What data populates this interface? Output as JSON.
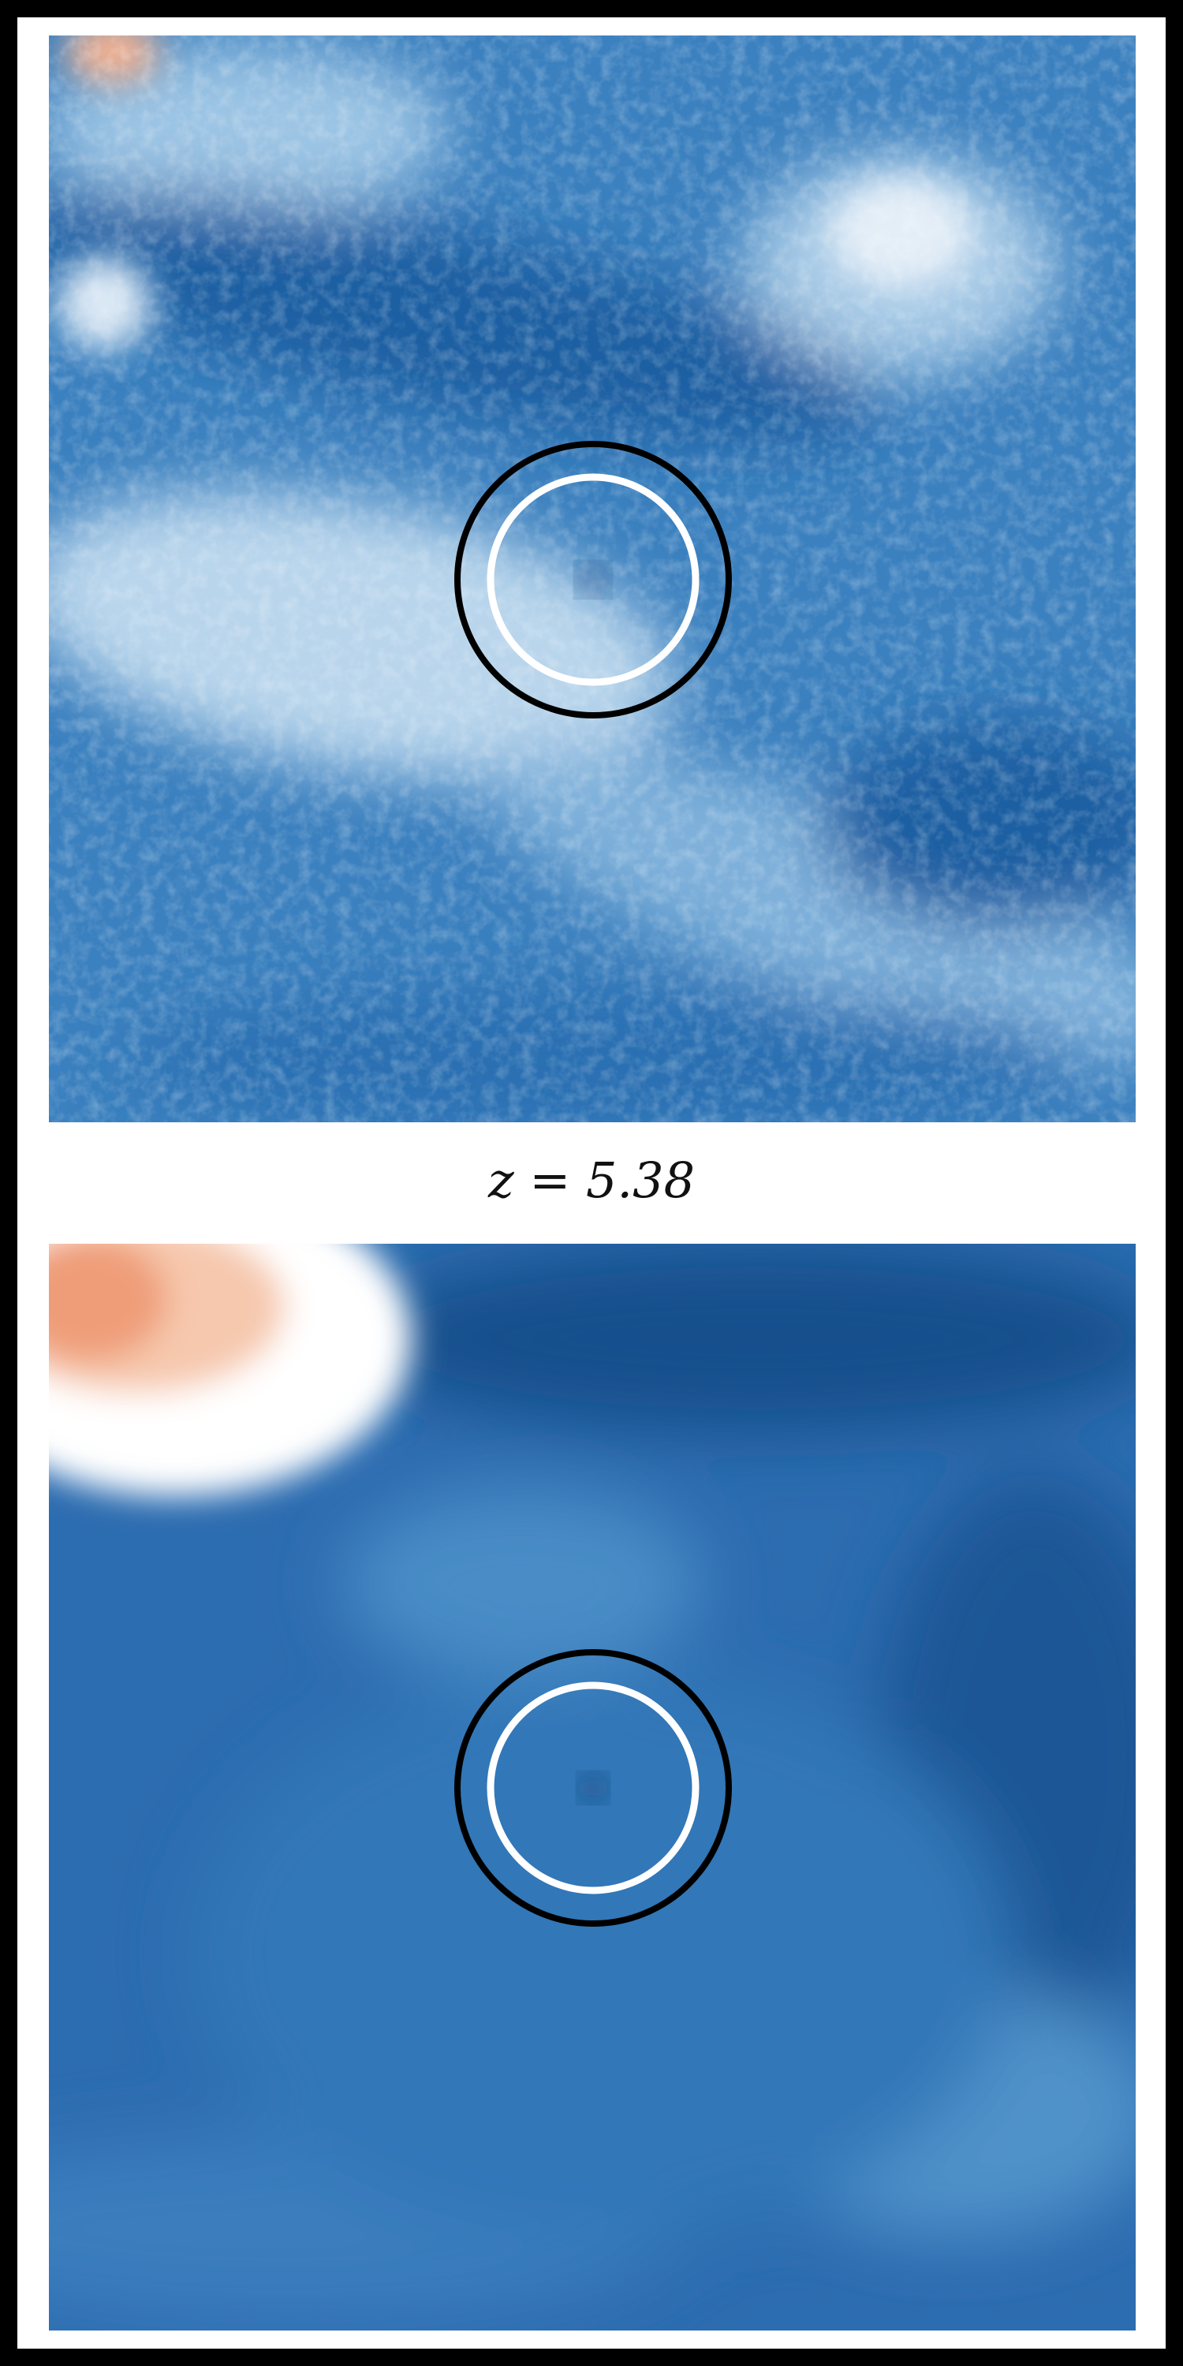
{
  "caption": {
    "label": "z = 5.38"
  },
  "colors": {
    "field_base_top": "#3d83c2",
    "field_base_bottom": "#2c6cb0",
    "deep": "#15508e",
    "light": "#d9e7f3",
    "warm": "#f0a07c",
    "outer_ring": "#000000",
    "inner_ring": "#ffffff"
  },
  "panels": [
    {
      "id": "top",
      "description_hidden": true
    },
    {
      "id": "bottom",
      "description_hidden": true
    }
  ]
}
